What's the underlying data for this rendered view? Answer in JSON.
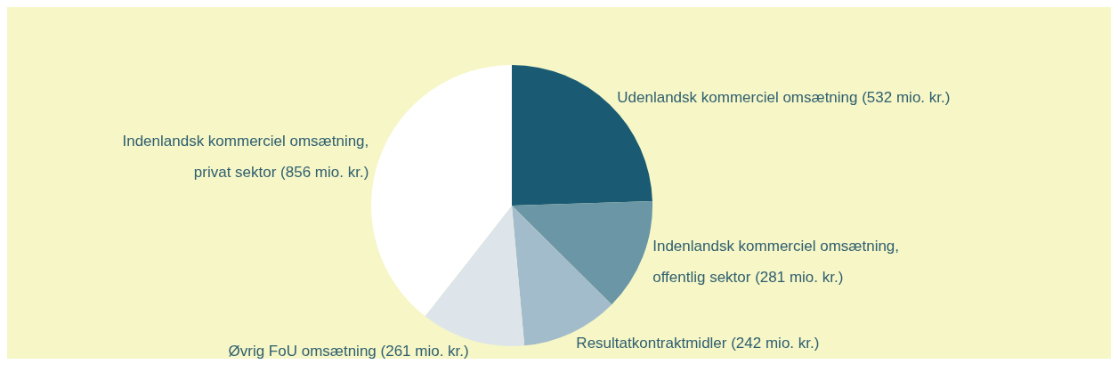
{
  "chart_data": {
    "type": "pie",
    "categories": [
      "Udenlandsk kommerciel omsætning",
      "Indenlandsk kommerciel omsætning, offentlig sektor",
      "Resultatkontraktmidler",
      "Øvrig FoU omsætning",
      "Indenlandsk kommerciel omsætning, privat sektor"
    ],
    "values": [
      532,
      281,
      242,
      261,
      856
    ],
    "colors": [
      "#1a5b73",
      "#6a96a6",
      "#a3bccb",
      "#dde5ea",
      "#ffffff"
    ],
    "value_labels": [
      "(532 mio. kr.)",
      "(281 mio. kr.)",
      "(242 mio. kr.)",
      "(261 mio. kr.)",
      "(856 mio. kr.)"
    ],
    "legend": false
  }
}
